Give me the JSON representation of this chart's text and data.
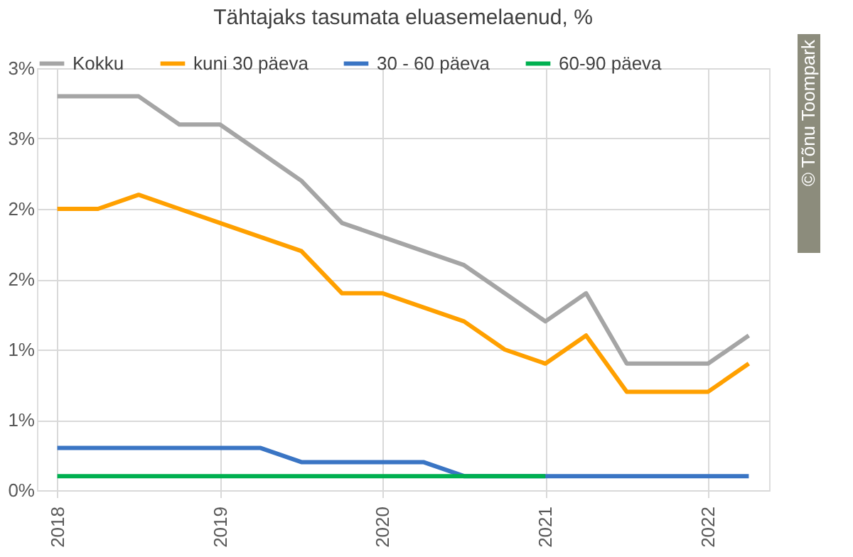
{
  "chart_data": {
    "type": "line",
    "title": "Tähtajaks tasumata eluasemelaenud, %",
    "categories": [
      "2018",
      null,
      null,
      null,
      "2019",
      null,
      null,
      null,
      "2020",
      null,
      null,
      null,
      "2021",
      null,
      null,
      null,
      "2022",
      null
    ],
    "series": [
      {
        "name": "Kokku",
        "color": "#a5a5a5",
        "values": [
          2.8,
          2.8,
          2.8,
          2.6,
          2.6,
          2.4,
          2.2,
          1.9,
          1.8,
          1.7,
          1.6,
          1.4,
          1.2,
          1.4,
          0.9,
          0.9,
          0.9,
          1.1
        ]
      },
      {
        "name": "kuni 30 päeva",
        "color": "#ffa000",
        "values": [
          2.0,
          2.0,
          2.1,
          2.0,
          1.9,
          1.8,
          1.7,
          1.4,
          1.4,
          1.3,
          1.2,
          1.0,
          0.9,
          1.1,
          0.7,
          0.7,
          0.7,
          0.9
        ]
      },
      {
        "name": "30 - 60 päeva",
        "color": "#3a75c4",
        "values": [
          0.3,
          0.3,
          0.3,
          0.3,
          0.3,
          0.3,
          0.2,
          0.2,
          0.2,
          0.2,
          0.1,
          0.1,
          0.1,
          0.1,
          0.1,
          0.1,
          0.1,
          0.1
        ]
      },
      {
        "name": "60-90 päeva",
        "color": "#00b050",
        "values": [
          0.1,
          0.1,
          0.1,
          0.1,
          0.1,
          0.1,
          0.1,
          0.1,
          0.1,
          0.1,
          0.1,
          0.1,
          0.1,
          null,
          null,
          null,
          null,
          null
        ]
      }
    ],
    "ylim": [
      0,
      3
    ],
    "yticks": [
      {
        "value": 0,
        "label": "0%"
      },
      {
        "value": 0.5,
        "label": "1%"
      },
      {
        "value": 1,
        "label": "1%"
      },
      {
        "value": 1.5,
        "label": "2%"
      },
      {
        "value": 2,
        "label": "2%"
      },
      {
        "value": 2.5,
        "label": "3%"
      },
      {
        "value": 3,
        "label": "3%"
      }
    ],
    "grid": true,
    "legend": "top",
    "marker": "none",
    "line_style": "solid",
    "annotations": [
      "© Tõnu Toompark"
    ]
  }
}
